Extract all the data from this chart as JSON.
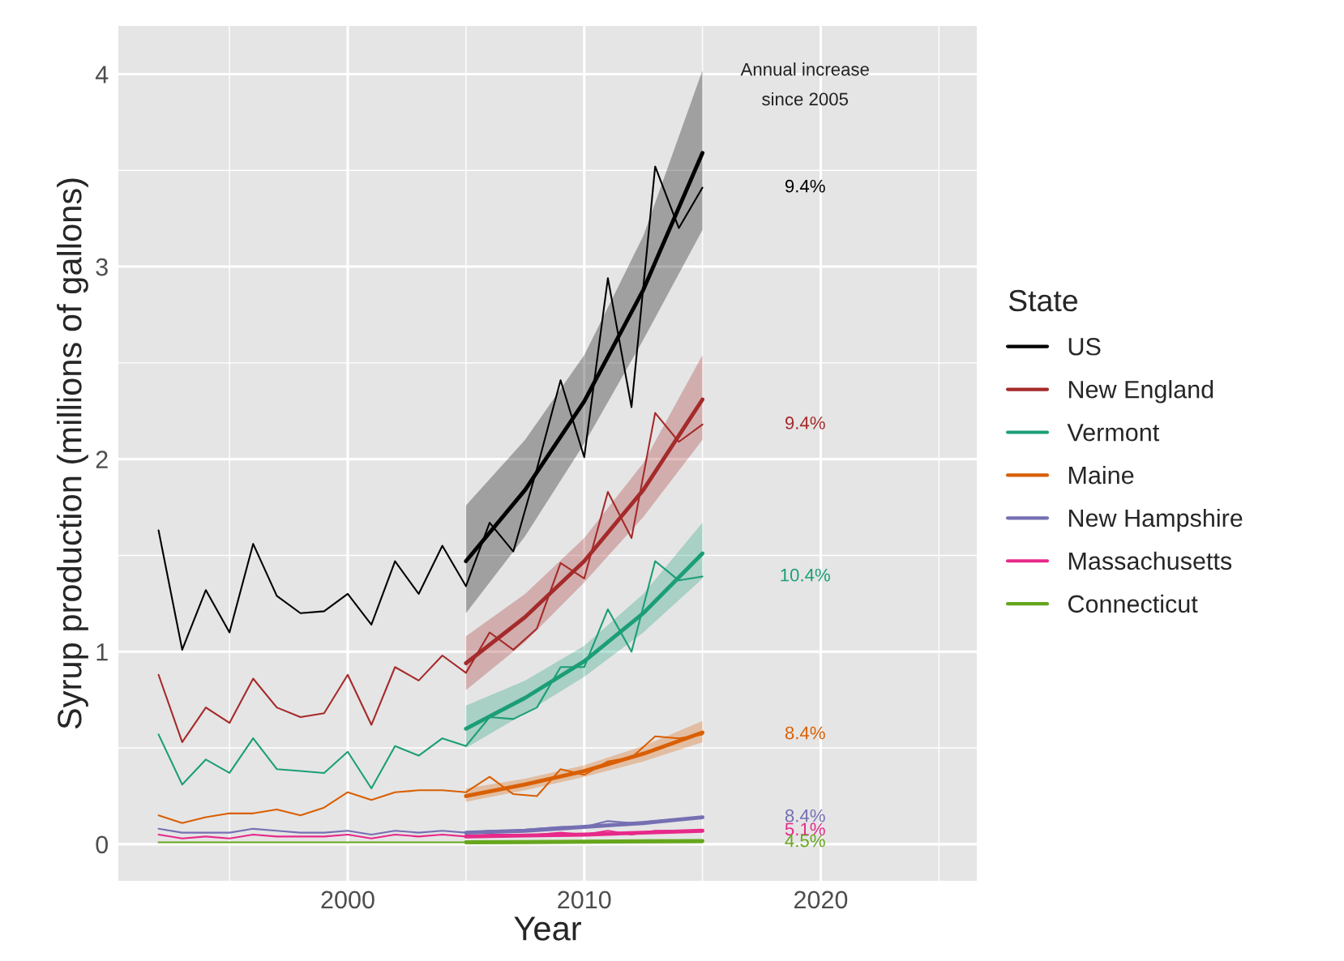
{
  "chart_data": {
    "type": "line",
    "xlabel": "Year",
    "ylabel": "Syrup production (millions of gallons)",
    "legend_title": "State",
    "legend": "right",
    "grid": true,
    "xlim": [
      1990.3,
      2026.6
    ],
    "ylim": [
      -0.19,
      4.25
    ],
    "xticks": [
      2000,
      2010,
      2020
    ],
    "yticks": [
      0,
      1,
      2,
      3,
      4
    ],
    "x": [
      1992,
      1993,
      1994,
      1995,
      1996,
      1997,
      1998,
      1999,
      2000,
      2001,
      2002,
      2003,
      2004,
      2005,
      2006,
      2007,
      2008,
      2009,
      2010,
      2011,
      2012,
      2013,
      2014,
      2015
    ],
    "series": [
      {
        "name": "US",
        "color": "#000000",
        "values": [
          1.63,
          1.01,
          1.32,
          1.1,
          1.56,
          1.29,
          1.2,
          1.21,
          1.3,
          1.14,
          1.47,
          1.3,
          1.55,
          1.34,
          1.67,
          1.52,
          1.95,
          2.41,
          2.01,
          2.94,
          2.27,
          3.52,
          3.2,
          3.41
        ]
      },
      {
        "name": "New England",
        "color": "#a52a2a",
        "values": [
          0.88,
          0.53,
          0.71,
          0.63,
          0.86,
          0.71,
          0.66,
          0.68,
          0.88,
          0.62,
          0.92,
          0.85,
          0.98,
          0.89,
          1.1,
          1.01,
          1.12,
          1.46,
          1.38,
          1.83,
          1.59,
          2.24,
          2.09,
          2.18
        ]
      },
      {
        "name": "Vermont",
        "color": "#1b9e77",
        "values": [
          0.57,
          0.31,
          0.44,
          0.37,
          0.55,
          0.39,
          0.38,
          0.37,
          0.48,
          0.29,
          0.51,
          0.46,
          0.55,
          0.51,
          0.66,
          0.65,
          0.71,
          0.92,
          0.92,
          1.22,
          1.0,
          1.47,
          1.37,
          1.39
        ]
      },
      {
        "name": "Maine",
        "color": "#d95f02",
        "values": [
          0.15,
          0.11,
          0.14,
          0.16,
          0.16,
          0.18,
          0.15,
          0.19,
          0.27,
          0.23,
          0.27,
          0.28,
          0.28,
          0.27,
          0.35,
          0.26,
          0.25,
          0.39,
          0.36,
          0.43,
          0.45,
          0.56,
          0.55,
          0.57
        ]
      },
      {
        "name": "New Hampshire",
        "color": "#7570b3",
        "values": [
          0.08,
          0.06,
          0.06,
          0.06,
          0.08,
          0.07,
          0.06,
          0.06,
          0.07,
          0.05,
          0.07,
          0.06,
          0.07,
          0.06,
          0.07,
          0.07,
          0.08,
          0.09,
          0.09,
          0.12,
          0.11,
          0.12,
          0.13,
          0.14
        ]
      },
      {
        "name": "Massachusetts",
        "color": "#e7298a",
        "values": [
          0.05,
          0.03,
          0.04,
          0.03,
          0.05,
          0.04,
          0.04,
          0.04,
          0.05,
          0.03,
          0.05,
          0.04,
          0.05,
          0.04,
          0.05,
          0.05,
          0.05,
          0.06,
          0.05,
          0.07,
          0.05,
          0.07,
          0.07,
          0.07
        ]
      },
      {
        "name": "Connecticut",
        "color": "#66a61e",
        "values": [
          0.01,
          0.01,
          0.01,
          0.01,
          0.01,
          0.01,
          0.01,
          0.01,
          0.01,
          0.01,
          0.01,
          0.01,
          0.01,
          0.01,
          0.01,
          0.01,
          0.01,
          0.01,
          0.01,
          0.01,
          0.01,
          0.01,
          0.01,
          0.01
        ]
      },
      {
        "type": "line",
        "color": "#000000",
        "x": [
          2005,
          2007.5,
          2010,
          2012.5,
          2015
        ],
        "values": [
          1.47,
          1.84,
          2.3,
          2.88,
          3.59
        ],
        "lower": [
          1.2,
          1.6,
          2.08,
          2.62,
          3.19
        ],
        "upper": [
          1.76,
          2.1,
          2.54,
          3.16,
          4.02
        ]
      },
      {
        "type": "line",
        "color": "#a52a2a",
        "x": [
          2005,
          2007.5,
          2010,
          2012.5,
          2015
        ],
        "values": [
          0.94,
          1.18,
          1.47,
          1.84,
          2.31
        ],
        "lower": [
          0.8,
          1.05,
          1.36,
          1.7,
          2.1
        ],
        "upper": [
          1.08,
          1.3,
          1.59,
          1.98,
          2.54
        ]
      },
      {
        "type": "line",
        "color": "#1b9e77",
        "x": [
          2005,
          2007.5,
          2010,
          2012.5,
          2015
        ],
        "values": [
          0.6,
          0.76,
          0.95,
          1.2,
          1.51
        ],
        "lower": [
          0.5,
          0.68,
          0.87,
          1.1,
          1.38
        ],
        "upper": [
          0.72,
          0.85,
          1.03,
          1.3,
          1.67
        ]
      },
      {
        "type": "line",
        "color": "#d95f02",
        "x": [
          2005,
          2007.5,
          2010,
          2012.5,
          2015
        ],
        "values": [
          0.25,
          0.31,
          0.38,
          0.47,
          0.58
        ],
        "lower": [
          0.22,
          0.28,
          0.35,
          0.43,
          0.53
        ],
        "upper": [
          0.29,
          0.34,
          0.41,
          0.51,
          0.64
        ]
      },
      {
        "type": "line",
        "color": "#7570b3",
        "x": [
          2005,
          2007.5,
          2010,
          2012.5,
          2015
        ],
        "values": [
          0.06,
          0.07,
          0.09,
          0.11,
          0.14
        ]
      },
      {
        "type": "line",
        "color": "#e7298a",
        "x": [
          2005,
          2007.5,
          2010,
          2012.5,
          2015
        ],
        "values": [
          0.04,
          0.045,
          0.05,
          0.06,
          0.07
        ]
      },
      {
        "type": "line",
        "color": "#66a61e",
        "x": [
          2005,
          2007.5,
          2010,
          2012.5,
          2015
        ],
        "values": [
          0.01,
          0.011,
          0.013,
          0.015,
          0.017
        ]
      }
    ],
    "annotations": [
      "Annual increase\nsince 2005",
      "9.4%",
      "9.4%",
      "10.4%",
      "8.4%",
      "8.4%",
      "5.1%",
      "4.5%"
    ]
  }
}
